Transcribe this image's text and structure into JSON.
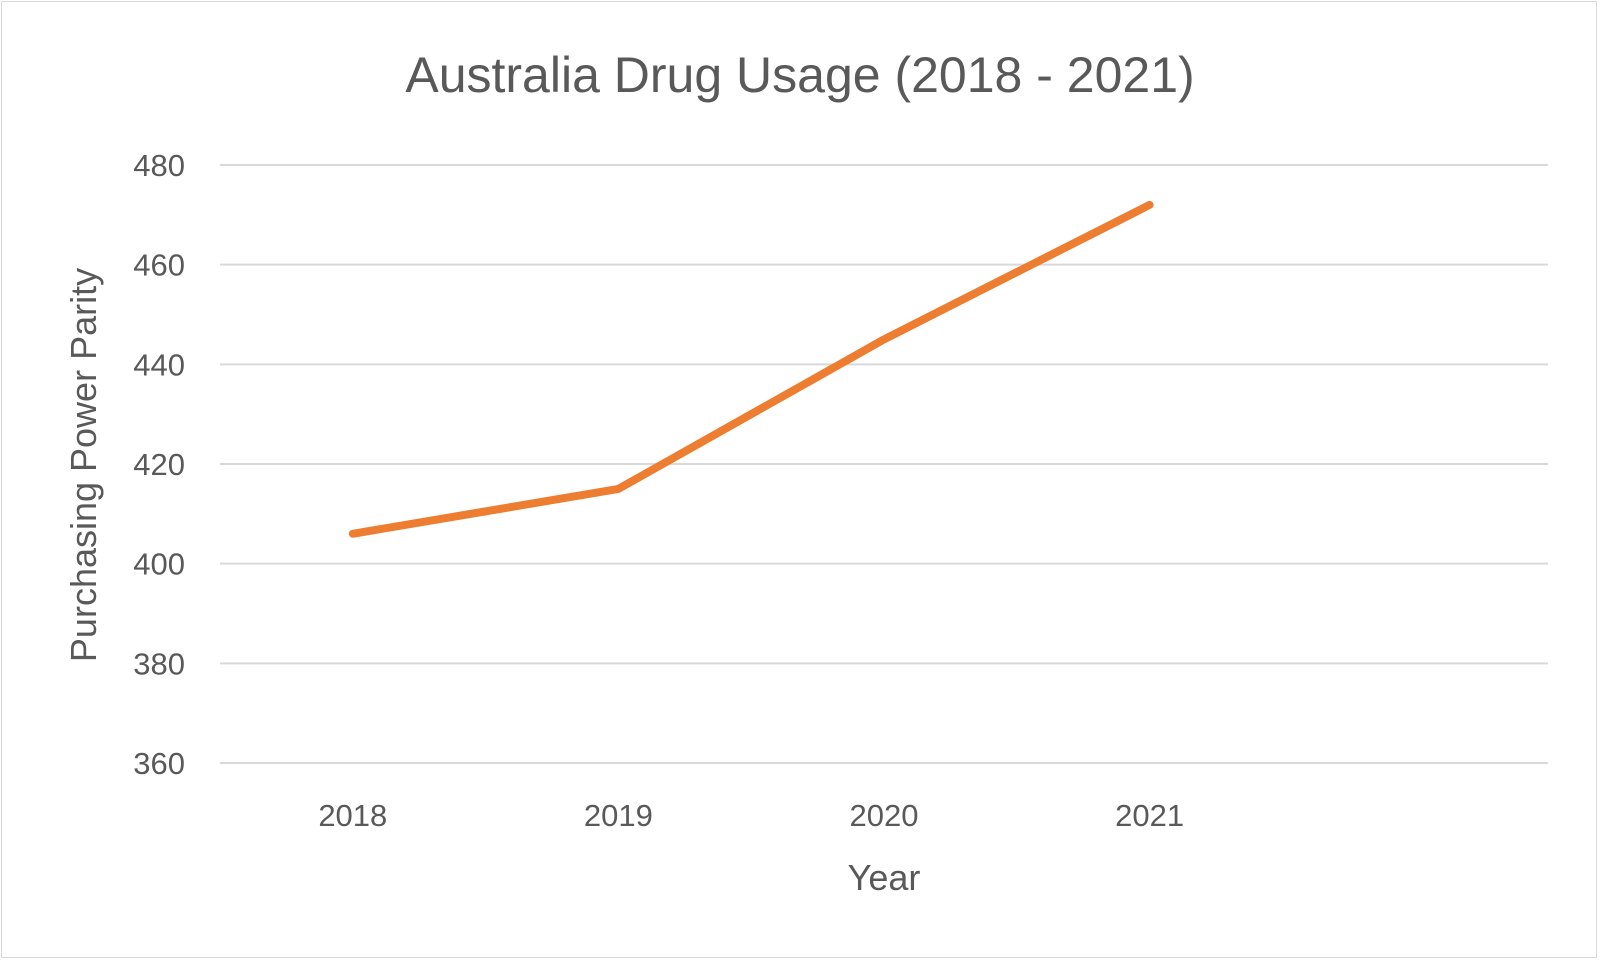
{
  "chart_data": {
    "type": "line",
    "title": "Australia Drug Usage (2018 - 2021)",
    "xlabel": "Year",
    "ylabel": "Purchasing Power Parity",
    "categories": [
      "2018",
      "2019",
      "2020",
      "2021"
    ],
    "series": [
      {
        "values": [
          406,
          415,
          445,
          472
        ]
      }
    ],
    "ylim": [
      360,
      480
    ],
    "yticks": [
      360,
      380,
      400,
      420,
      440,
      460,
      480
    ],
    "grid": true,
    "legend": "none",
    "colors": {
      "series": "#ed7d31",
      "grid": "#d9d9d9",
      "text": "#595959"
    }
  }
}
